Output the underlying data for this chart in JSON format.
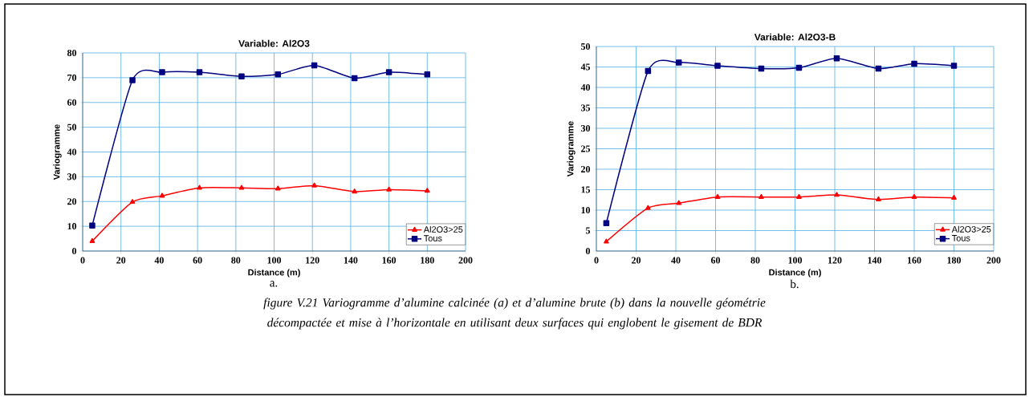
{
  "chart_data": [
    {
      "type": "line",
      "title": "Variable: Al2O3",
      "xlabel": "Distance (m)",
      "ylabel": "Variogramme",
      "x": [
        5,
        26,
        41.5,
        61,
        83,
        102,
        121,
        142,
        160,
        180
      ],
      "series": [
        {
          "name": "Al2O3>25",
          "color": "#ff0000",
          "marker": "triangle",
          "values": [
            4,
            19.8,
            22.3,
            25.5,
            25.5,
            25.2,
            26.4,
            24,
            24.8,
            24.3
          ]
        },
        {
          "name": "Tous",
          "color": "#000080",
          "marker": "square",
          "values": [
            10.3,
            69,
            72.2,
            72.2,
            70.5,
            71.3,
            75,
            69.8,
            72.2,
            71.3
          ]
        }
      ],
      "xlim": [
        0,
        200
      ],
      "xticks": [
        0,
        20,
        40,
        60,
        80,
        100,
        120,
        140,
        160,
        180,
        200
      ],
      "ylim": [
        0,
        80
      ],
      "yticks": [
        0,
        10,
        20,
        30,
        40,
        50,
        60,
        70,
        80
      ],
      "grid": true,
      "legend": "bottom right",
      "line_style": "solid",
      "annotations": [
        "a."
      ]
    },
    {
      "type": "line",
      "title": "Variable: Al2O3-B",
      "xlabel": "Distance (m)",
      "ylabel": "Variogramme",
      "x": [
        5,
        26,
        41.5,
        61,
        83,
        102,
        121,
        142,
        160,
        180
      ],
      "series": [
        {
          "name": "Al2O3>25",
          "color": "#ff0000",
          "marker": "triangle",
          "values": [
            2.3,
            10.5,
            11.7,
            13.2,
            13.2,
            13.2,
            13.7,
            12.6,
            13.2,
            13
          ]
        },
        {
          "name": "Tous",
          "color": "#000080",
          "marker": "square",
          "values": [
            6.8,
            44,
            46.1,
            45.3,
            44.6,
            44.8,
            47.1,
            44.6,
            45.8,
            45.3
          ]
        }
      ],
      "xlim": [
        0,
        200
      ],
      "xticks": [
        0,
        20,
        40,
        60,
        80,
        100,
        120,
        140,
        160,
        180,
        200
      ],
      "ylim": [
        0,
        50
      ],
      "yticks": [
        0,
        5,
        10,
        15,
        20,
        25,
        30,
        35,
        40,
        45,
        50
      ],
      "grid": true,
      "legend": "bottom right",
      "line_style": "solid",
      "annotations": [
        "b.",
        "figure V.21  Variogramme d’alumine calcinée (a) et d’alumine brute (b) dans la nouvelle géométrie décompactée et mise à l’horizontale en utilisant deux surfaces qui englobent le gisement de BDR"
      ]
    }
  ]
}
